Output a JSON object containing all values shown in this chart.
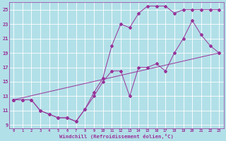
{
  "xlabel": "Windchill (Refroidissement éolien,°C)",
  "bg_color": "#b2e0e8",
  "grid_color": "#ffffff",
  "line_color": "#993399",
  "xlim": [
    -0.5,
    23.5
  ],
  "ylim": [
    8.5,
    26.0
  ],
  "xticks": [
    0,
    1,
    2,
    3,
    4,
    5,
    6,
    7,
    8,
    9,
    10,
    11,
    12,
    13,
    14,
    15,
    16,
    17,
    18,
    19,
    20,
    21,
    22,
    23
  ],
  "yticks": [
    9,
    11,
    13,
    15,
    17,
    19,
    21,
    23,
    25
  ],
  "series1_x": [
    0,
    1,
    2,
    3,
    4,
    5,
    6,
    7,
    8,
    9,
    10,
    11,
    12,
    13,
    14,
    15,
    16,
    17,
    18,
    19,
    20,
    21,
    22,
    23
  ],
  "series1_y": [
    12.5,
    12.5,
    12.5,
    11.0,
    10.5,
    10.0,
    10.0,
    9.5,
    11.2,
    13.0,
    15.0,
    16.5,
    16.5,
    13.0,
    17.0,
    17.0,
    17.5,
    16.5,
    19.0,
    21.0,
    23.5,
    21.5,
    20.0,
    19.0
  ],
  "series2_x": [
    0,
    1,
    2,
    3,
    4,
    5,
    6,
    7,
    8,
    9,
    10,
    11,
    12,
    13,
    14,
    15,
    16,
    17,
    18,
    19,
    20,
    21,
    22,
    23
  ],
  "series2_y": [
    12.5,
    12.5,
    12.5,
    11.0,
    10.5,
    10.0,
    10.0,
    9.5,
    11.2,
    13.5,
    15.5,
    20.0,
    23.0,
    22.5,
    24.5,
    25.5,
    25.5,
    25.5,
    24.5,
    25.0,
    25.0,
    25.0,
    25.0,
    25.0
  ],
  "series3_x": [
    0,
    23
  ],
  "series3_y": [
    12.5,
    19.0
  ]
}
